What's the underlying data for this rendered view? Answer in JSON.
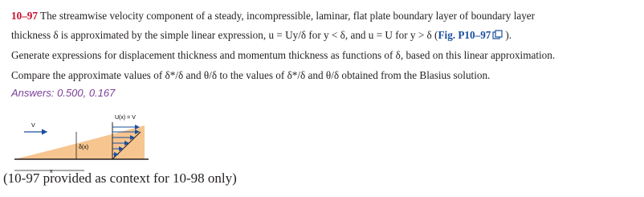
{
  "problem": {
    "number": "10–97",
    "lines": [
      " The streamwise velocity component of a steady, incompressible, laminar, flat plate boundary layer of boundary layer",
      "thickness δ is approximated by the simple linear expression, u = Uy/δ for y < δ, and u = U for y > δ (",
      "Generate expressions for displacement thickness and momentum thickness as functions of δ, based on this linear approximation.",
      "Compare the approximate values of δ*/δ and θ/δ to the values of δ*/δ and θ/δ obtained from the Blasius solution."
    ],
    "figure_ref": "Fig. P10–97",
    "line2_end": ").",
    "answers": "Answers: 0.500, 0.167"
  },
  "figure": {
    "top_label": "U(x) = V",
    "freestream_label": "V",
    "thickness_label": "δ(x)",
    "x_label": "x"
  },
  "caption": "(10-97 provided as context for 10-98 only)"
}
